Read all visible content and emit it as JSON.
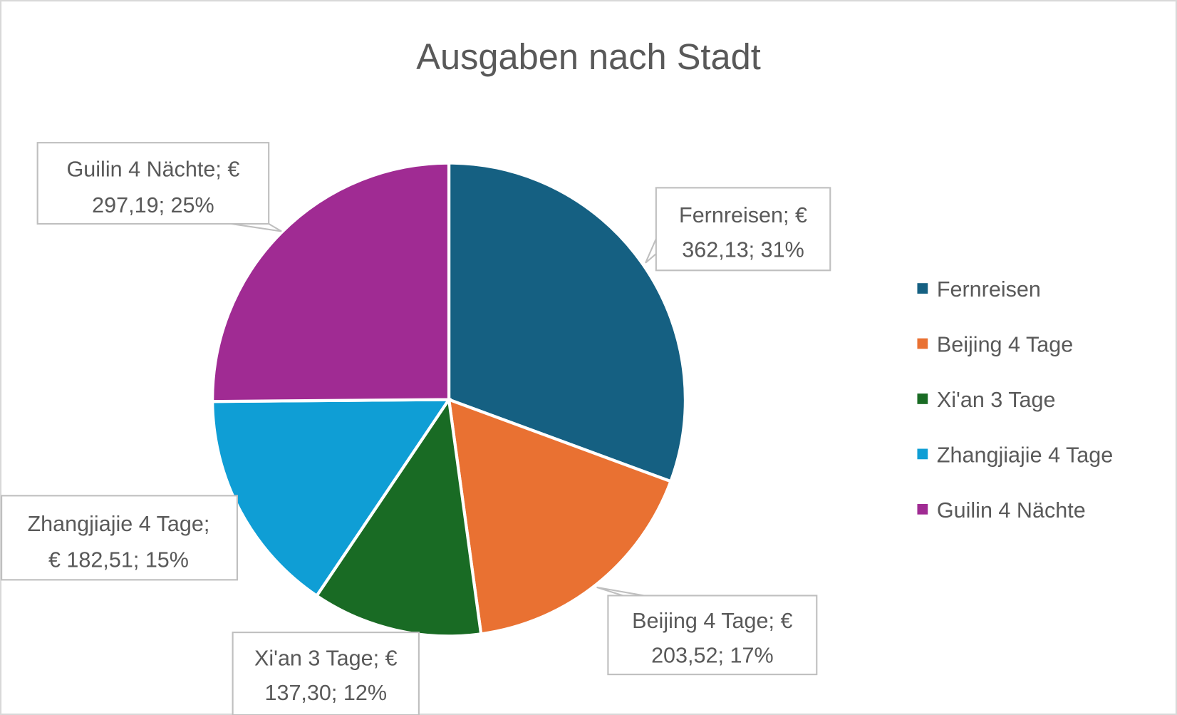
{
  "chart_data": {
    "type": "pie",
    "title": "Ausgaben nach Stadt",
    "currency": "€",
    "start_angle": "top, clockwise",
    "legend_position": "right",
    "slices": [
      {
        "name": "Fernreisen",
        "value": 362.13,
        "percent": 31,
        "color": "#156082",
        "label_lines": [
          "Fernreisen; €",
          "362,13; 31%"
        ]
      },
      {
        "name": "Beijing 4 Tage",
        "value": 203.52,
        "percent": 17,
        "color": "#E97132",
        "label_lines": [
          "Beijing 4 Tage; €",
          "203,52; 17%"
        ]
      },
      {
        "name": "Xi'an 3 Tage",
        "value": 137.3,
        "percent": 12,
        "color": "#196B24",
        "label_lines": [
          "Xi'an 3 Tage; €",
          "137,30; 12%"
        ]
      },
      {
        "name": "Zhangjiajie 4 Tage",
        "value": 182.51,
        "percent": 15,
        "color": "#0F9ED5",
        "label_lines": [
          "Zhangjiajie 4 Tage;",
          "€ 182,51; 15%"
        ]
      },
      {
        "name": "Guilin 4 Nächte",
        "value": 297.19,
        "percent": 25,
        "color": "#A02B93",
        "label_lines": [
          "Guilin 4 Nächte; €",
          "297,19; 25%"
        ]
      }
    ]
  }
}
